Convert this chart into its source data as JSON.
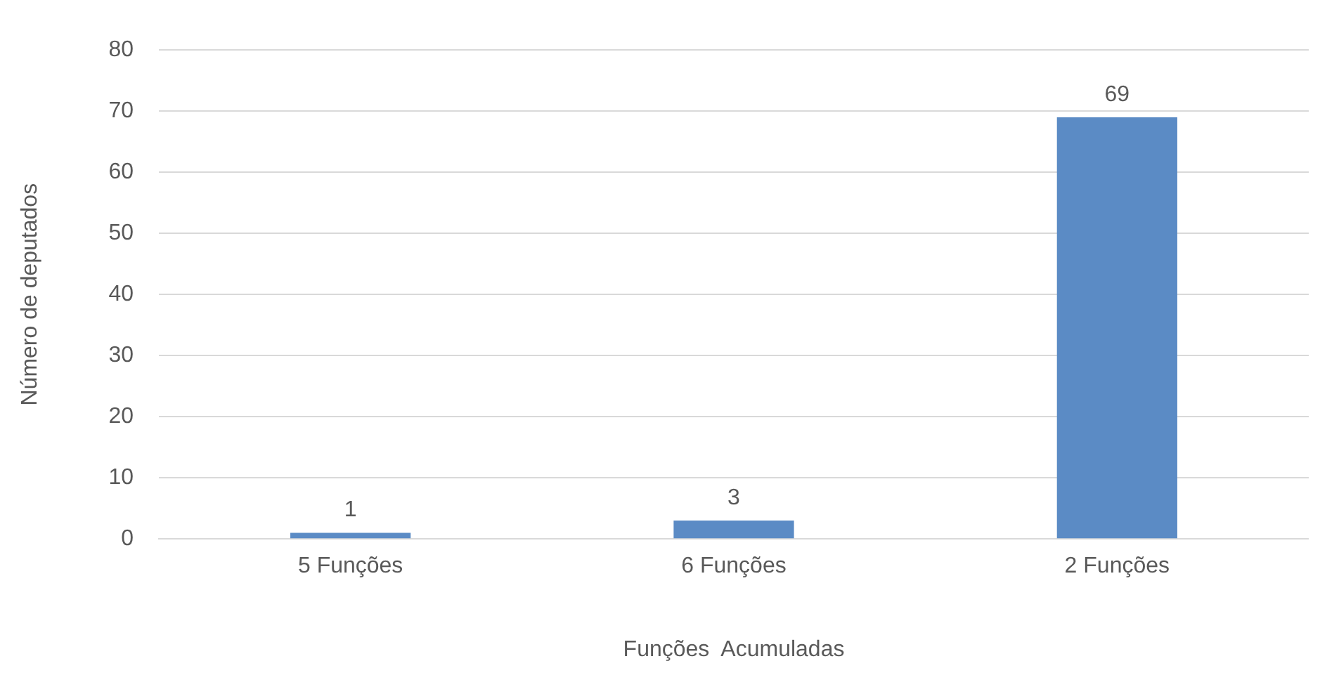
{
  "chart_data": {
    "type": "bar",
    "xlabel": "Funções  Acumuladas",
    "ylabel": "Número de deputados",
    "categories": [
      "5 Funções",
      "6 Funções",
      "2 Funções"
    ],
    "values": [
      1,
      3,
      69
    ],
    "color": "#5b8bc5",
    "ylim": [
      0,
      80
    ],
    "yticks": [
      0,
      10,
      20,
      30,
      40,
      50,
      60,
      70,
      80
    ],
    "grid": "y",
    "data_labels": true,
    "legend": false
  }
}
